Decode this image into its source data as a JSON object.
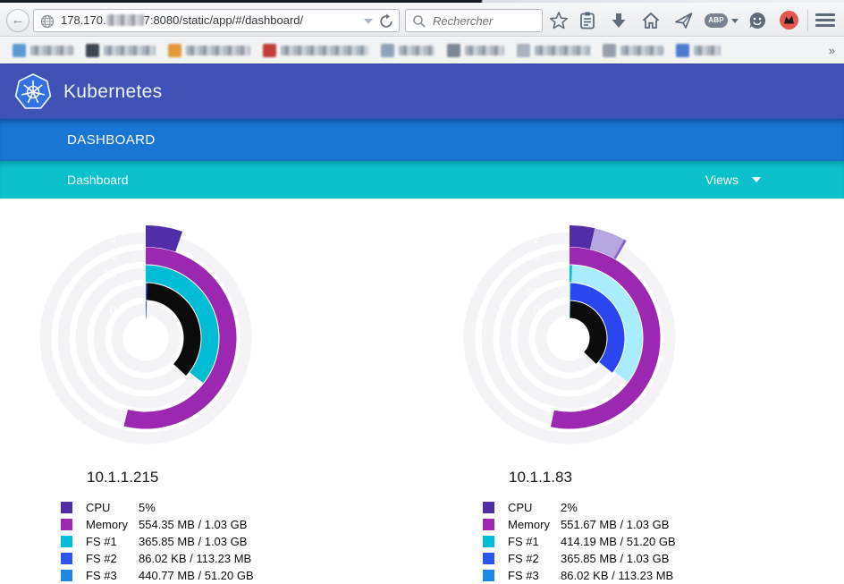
{
  "browser": {
    "back_glyph": "←",
    "url": {
      "prefix": "178.170.",
      "suffix": "7:8080/static/app/#/dashboard/"
    },
    "search_placeholder": "Rechercher",
    "abp_label": "ABP",
    "overflow_chevron": "»",
    "bookmarks": [
      {
        "favicon": "#5b9bd5",
        "width": 48
      },
      {
        "favicon": "#3c4650",
        "width": 58
      },
      {
        "favicon": "#e2993b",
        "width": 72
      },
      {
        "favicon": "#c43c35",
        "width": 98
      },
      {
        "favicon": "#8fa3b8",
        "width": 40
      },
      {
        "favicon": "#7c8894",
        "width": 44
      },
      {
        "favicon": "#aab4bf",
        "width": 62
      },
      {
        "favicon": "#95a0ac",
        "width": 48
      },
      {
        "favicon": "#4a7bd0",
        "width": 30
      }
    ]
  },
  "header": {
    "brand": "Kubernetes"
  },
  "nav": {
    "primary": "DASHBOARD",
    "secondary": "Dashboard",
    "views_label": "Views"
  },
  "colors": {
    "header_indigo": "#3f51b5",
    "primary_blue": "#1976d2",
    "secondary_teal": "#0cc0cc",
    "track_gray": "#f4f4f6"
  },
  "chart_data": [
    {
      "type": "radial-gauge",
      "title": "10.1.1.215",
      "rings": [
        {
          "tick": "5",
          "arcs": [
            {
              "color": "#512da8",
              "start": 0,
              "end": 19,
              "wide": true
            }
          ]
        },
        {
          "tick": "54",
          "arcs": [
            {
              "color": "#9c27b0",
              "start": 0,
              "end": 194
            }
          ]
        },
        {
          "tick": "35",
          "arcs": [
            {
              "color": "#00bcd4",
              "start": 0,
              "end": 128
            }
          ]
        },
        {
          "tick": "0",
          "arcs": [
            {
              "color": "#0b0b0b",
              "start": 0,
              "end": 133
            },
            {
              "color": "#2b55f2",
              "start": 0,
              "end": 1.6
            }
          ]
        },
        {
          "tick": "0",
          "arcs": [
            {
              "color": "#2b55f2",
              "start": 0,
              "end": 1.6
            }
          ]
        }
      ],
      "legend": [
        {
          "color": "#512da8",
          "label": "CPU",
          "value": "5%"
        },
        {
          "color": "#9c27b0",
          "label": "Memory",
          "value": "554.35 MB / 1.03 GB"
        },
        {
          "color": "#00bcd4",
          "label": "FS #1",
          "value": "365.85 MB / 1.03 GB"
        },
        {
          "color": "#2b55f2",
          "label": "FS #2",
          "value": "86.02 KB / 113.23 MB"
        },
        {
          "color": "#1e88e5",
          "label": "FS #3",
          "value": "440.77 MB / 51.20 GB"
        }
      ]
    },
    {
      "type": "radial-gauge",
      "title": "10.1.1.83",
      "rings": [
        {
          "tick": "2",
          "arcs": [
            {
              "color": "#512da8",
              "start": 0,
              "end": 13,
              "wide": true
            },
            {
              "color": "#b7a7e0",
              "start": 13,
              "end": 30,
              "wide": true
            },
            {
              "color": "#8565c9",
              "start": 29,
              "end": 30.4,
              "wide": true
            }
          ]
        },
        {
          "tick": "53",
          "arcs": [
            {
              "color": "#9c27b0",
              "start": 0,
              "end": 192
            }
          ]
        },
        {
          "tick": "0",
          "arcs": [
            {
              "color": "#a9ecfb",
              "start": 0,
              "end": 127
            },
            {
              "color": "#00bcd4",
              "start": 0,
              "end": 2
            }
          ]
        },
        {
          "tick": "35",
          "arcs": [
            {
              "color": "#2a46f0",
              "start": 0,
              "end": 129
            },
            {
              "color": "#5adbe9",
              "start": 0,
              "end": 1.2
            }
          ]
        },
        {
          "tick": "0",
          "arcs": [
            {
              "color": "#0b0b0b",
              "start": 0,
              "end": 134
            },
            {
              "color": "#5adbe9",
              "start": 0,
              "end": 1.2
            }
          ]
        }
      ],
      "legend": [
        {
          "color": "#512da8",
          "label": "CPU",
          "value": "2%"
        },
        {
          "color": "#9c27b0",
          "label": "Memory",
          "value": "551.67 MB / 1.03 GB"
        },
        {
          "color": "#00bcd4",
          "label": "FS #1",
          "value": "414.19 MB / 51.20 GB"
        },
        {
          "color": "#2b55f2",
          "label": "FS #2",
          "value": "365.85 MB / 1.03 GB"
        },
        {
          "color": "#1e88e5",
          "label": "FS #3",
          "value": "86.02 KB / 113.23 MB"
        }
      ]
    }
  ]
}
